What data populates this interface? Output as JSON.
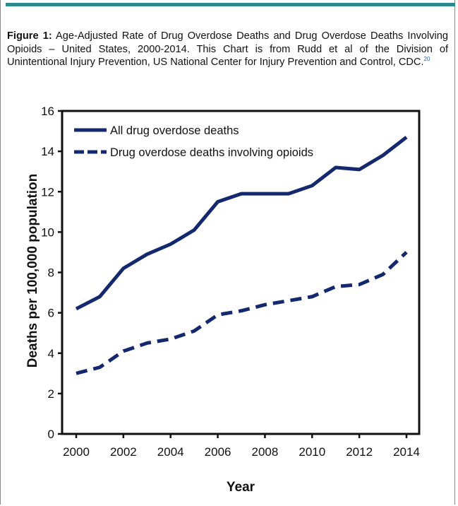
{
  "figure": {
    "label": "Figure 1:",
    "caption": "Age-Adjusted Rate of Drug Overdose Deaths and Drug Overdose Deaths Involving Opioids – United States, 2000-2014. This Chart is from Rudd et al of the Division of Unintentional Injury Prevention, US National Center for Injury Prevention and Control, CDC.",
    "ref": "20"
  },
  "colors": {
    "accent_bar": "#2a8a8c",
    "series": "#14286e"
  },
  "chart_data": {
    "type": "line",
    "title": "",
    "xlabel": "Year",
    "ylabel": "Deaths per 100,000 population",
    "x": [
      2000,
      2001,
      2002,
      2003,
      2004,
      2005,
      2006,
      2007,
      2008,
      2009,
      2010,
      2011,
      2012,
      2013,
      2014
    ],
    "xticks": [
      "2000",
      "2002",
      "2004",
      "2006",
      "2008",
      "2010",
      "2012",
      "2014"
    ],
    "yticks": [
      "0",
      "2",
      "4",
      "6",
      "8",
      "10",
      "12",
      "14",
      "16"
    ],
    "xlim": [
      2000,
      2014
    ],
    "ylim": [
      0,
      16
    ],
    "grid": false,
    "legend_position": "top-left",
    "series": [
      {
        "name": "All drug overdose deaths",
        "style": "solid",
        "values": [
          6.2,
          6.8,
          8.2,
          8.9,
          9.4,
          10.1,
          11.5,
          11.9,
          11.9,
          11.9,
          12.3,
          13.2,
          13.1,
          13.8,
          14.7
        ]
      },
      {
        "name": "Drug overdose deaths involving opioids",
        "style": "dashed",
        "values": [
          3.0,
          3.3,
          4.1,
          4.5,
          4.7,
          5.1,
          5.9,
          6.1,
          6.4,
          6.6,
          6.8,
          7.3,
          7.4,
          7.9,
          9.0
        ]
      }
    ]
  }
}
